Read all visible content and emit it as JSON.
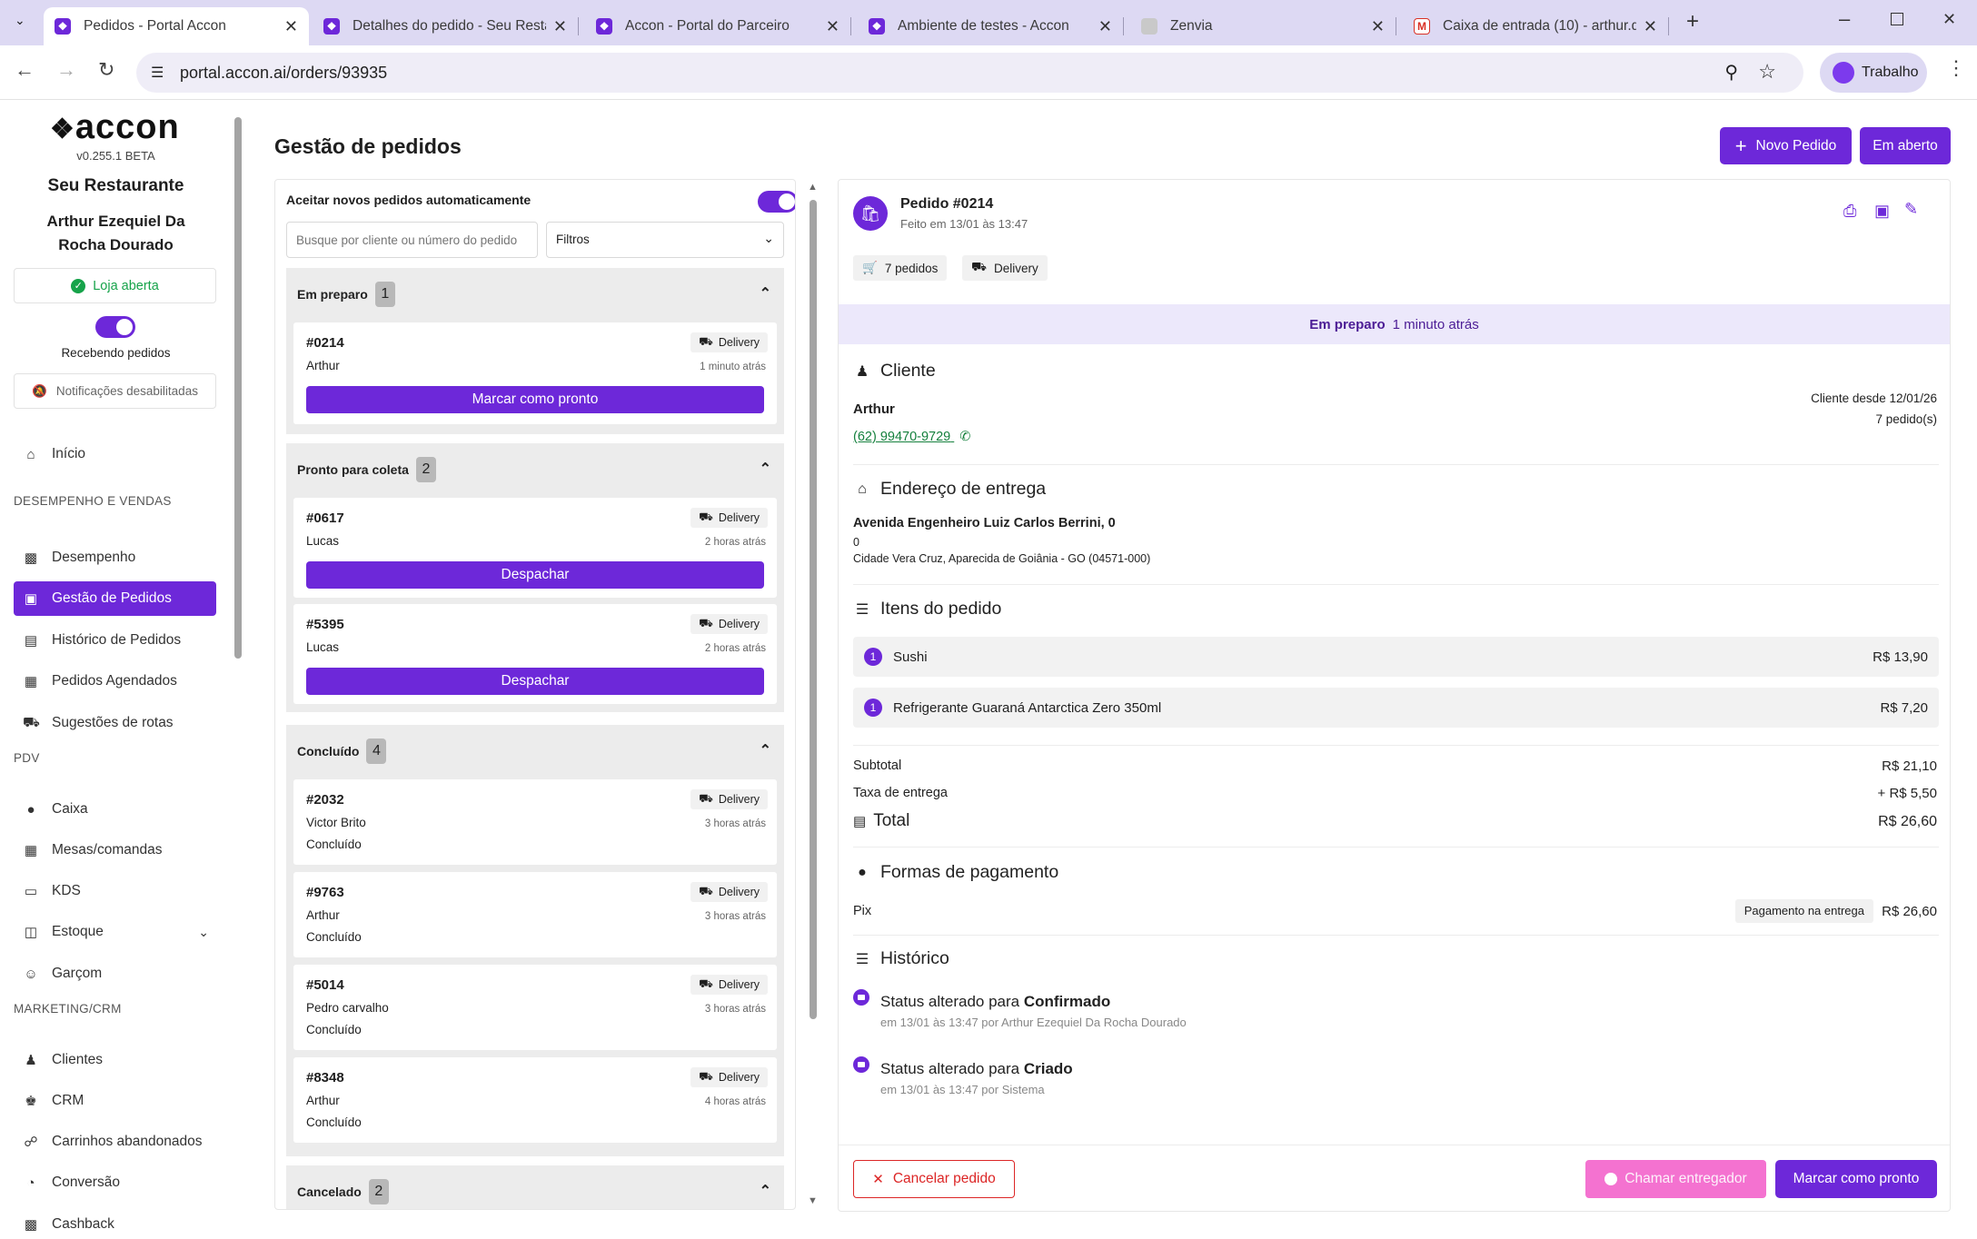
{
  "browser": {
    "tabs": [
      {
        "title": "Pedidos - Portal Accon",
        "active": true
      },
      {
        "title": "Detalhes do pedido - Seu Resta",
        "active": false
      },
      {
        "title": "Accon - Portal do Parceiro",
        "active": false
      },
      {
        "title": "Ambiente de testes - Accon",
        "active": false
      },
      {
        "title": "Zenvia",
        "active": false
      },
      {
        "title": "Caixa de entrada (10) - arthur.d",
        "active": false
      }
    ],
    "url": "portal.accon.ai/orders/93935",
    "profile": "Trabalho"
  },
  "sidebar": {
    "logo": "accon",
    "version": "v0.255.1 BETA",
    "restaurant": "Seu Restaurante",
    "user": "Arthur Ezequiel Da Rocha Dourado",
    "store_status": "Loja aberta",
    "receiving_label": "Recebendo pedidos",
    "notifications": "Notificações desabilitadas",
    "home": "Início",
    "sections": {
      "sales": "DESEMPENHO E VENDAS",
      "pdv": "PDV",
      "marketing": "MARKETING/CRM"
    },
    "items": {
      "desempenho": "Desempenho",
      "gestao": "Gestão de Pedidos",
      "historico": "Histórico de Pedidos",
      "agendados": "Pedidos Agendados",
      "rotas": "Sugestões de rotas",
      "caixa": "Caixa",
      "mesas": "Mesas/comandas",
      "kds": "KDS",
      "estoque": "Estoque",
      "garcom": "Garçom",
      "clientes": "Clientes",
      "crm": "CRM",
      "carrinhos": "Carrinhos abandonados",
      "conversao": "Conversão",
      "cashback": "Cashback"
    }
  },
  "header": {
    "title": "Gestão de pedidos",
    "new_order": "Novo Pedido",
    "open": "Em aberto"
  },
  "orders": {
    "auto_accept": "Aceitar novos pedidos automaticamente",
    "search_placeholder": "Busque por cliente ou número do pedido",
    "filters": "Filtros",
    "groups": {
      "preparo": {
        "label": "Em preparo",
        "count": "1"
      },
      "pronto": {
        "label": "Pronto para coleta",
        "count": "2"
      },
      "concluido": {
        "label": "Concluído",
        "count": "4"
      },
      "cancelado": {
        "label": "Cancelado",
        "count": "2"
      }
    },
    "cards": [
      {
        "num": "#0214",
        "cust": "Arthur",
        "badge": "Delivery",
        "ago": "1 minuto atrás",
        "action": "Marcar como pronto"
      },
      {
        "num": "#0617",
        "cust": "Lucas",
        "badge": "Delivery",
        "ago": "2 horas atrás",
        "action": "Despachar"
      },
      {
        "num": "#5395",
        "cust": "Lucas",
        "badge": "Delivery",
        "ago": "2 horas atrás",
        "action": "Despachar"
      },
      {
        "num": "#2032",
        "cust": "Victor Brito",
        "badge": "Delivery",
        "ago": "3 horas atrás",
        "status": "Concluído"
      },
      {
        "num": "#9763",
        "cust": "Arthur",
        "badge": "Delivery",
        "ago": "3 horas atrás",
        "status": "Concluído"
      },
      {
        "num": "#5014",
        "cust": "Pedro carvalho",
        "badge": "Delivery",
        "ago": "3 horas atrás",
        "status": "Concluído"
      },
      {
        "num": "#8348",
        "cust": "Arthur",
        "badge": "Delivery",
        "ago": "4 horas atrás",
        "status": "Concluído"
      }
    ]
  },
  "detail": {
    "title": "Pedido #0214",
    "subtitle": "Feito em 13/01 às 13:47",
    "chip_orders": "7 pedidos",
    "chip_type": "Delivery",
    "banner_status": "Em preparo",
    "banner_time": "1 minuto atrás",
    "client": {
      "title": "Cliente",
      "name": "Arthur",
      "phone": "(62) 99470-9729",
      "since": "Cliente desde 12/01/26",
      "orders": "7 pedido(s)"
    },
    "address": {
      "title": "Endereço de entrega",
      "line1": "Avenida Engenheiro Luiz Carlos Berrini, 0",
      "line2": "0",
      "line3": "Cidade Vera Cruz, Aparecida de Goiânia - GO (04571-000)"
    },
    "items_title": "Itens do pedido",
    "items": [
      {
        "qty": "1",
        "name": "Sushi",
        "price": "R$ 13,90"
      },
      {
        "qty": "1",
        "name": "Refrigerante Guaraná Antarctica Zero 350ml",
        "price": "R$ 7,20"
      }
    ],
    "subtotal_label": "Subtotal",
    "subtotal": "R$ 21,10",
    "fee_label": "Taxa de entrega",
    "fee": "+ R$ 5,50",
    "total_label": "Total",
    "total": "R$ 26,60",
    "payment_title": "Formas de pagamento",
    "payment_method": "Pix",
    "payment_badge": "Pagamento na entrega",
    "payment_value": "R$ 26,60",
    "history_title": "Histórico",
    "history": [
      {
        "prefix": "Status alterado para",
        "status": "Confirmado",
        "meta": "em 13/01 às 13:47 por Arthur Ezequiel Da Rocha Dourado"
      },
      {
        "prefix": "Status alterado para",
        "status": "Criado",
        "meta": "em 13/01 às 13:47 por Sistema"
      }
    ],
    "cancel": "Cancelar pedido",
    "call_driver": "Chamar entregador",
    "mark_ready": "Marcar como pronto"
  }
}
